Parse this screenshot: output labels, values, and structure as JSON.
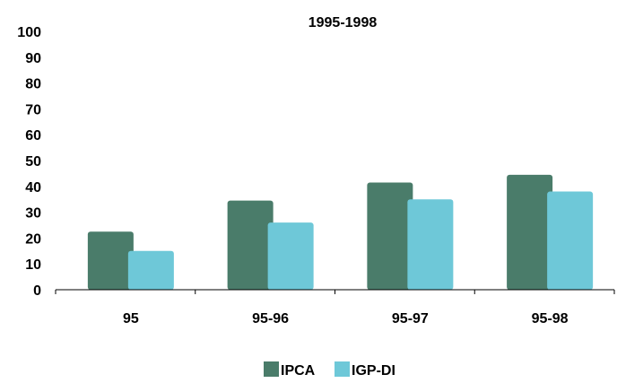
{
  "chart_data": {
    "type": "bar",
    "title": "1995-1998",
    "xlabel": "",
    "ylabel": "",
    "categories": [
      "95",
      "95-96",
      "95-97",
      "95-98"
    ],
    "series": [
      {
        "name": "IPCA",
        "values": [
          22.5,
          34.5,
          41.5,
          44.5
        ],
        "color": "#4a7c6a"
      },
      {
        "name": "IGP-DI",
        "values": [
          15,
          26,
          35,
          38
        ],
        "color": "#6ec8d8"
      }
    ],
    "ylim": [
      0,
      100
    ],
    "yticks": [
      "0",
      "10",
      "20",
      "30",
      "40",
      "50",
      "60",
      "70",
      "80",
      "90",
      "100"
    ],
    "grid": false,
    "legend_position": "bottom"
  }
}
